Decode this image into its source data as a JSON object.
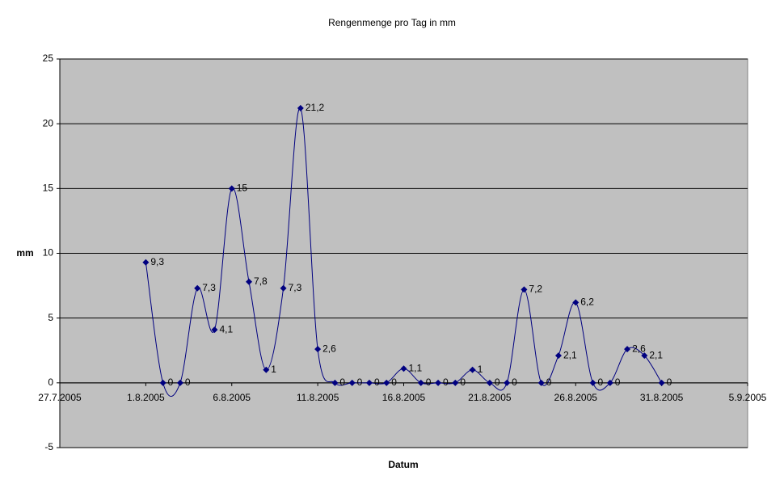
{
  "chart_data": {
    "type": "line",
    "title": "Rengenmenge pro Tag in mm",
    "x_label": "Datum",
    "y_label": "mm",
    "x": [
      "1.8.2005",
      "2.8.2005",
      "3.8.2005",
      "4.8.2005",
      "5.8.2005",
      "6.8.2005",
      "7.8.2005",
      "8.8.2005",
      "9.8.2005",
      "10.8.2005",
      "11.8.2005",
      "12.8.2005",
      "13.8.2005",
      "14.8.2005",
      "15.8.2005",
      "16.8.2005",
      "17.8.2005",
      "18.8.2005",
      "19.8.2005",
      "20.8.2005",
      "21.8.2005",
      "22.8.2005",
      "23.8.2005",
      "24.8.2005",
      "25.8.2005",
      "26.8.2005",
      "27.8.2005",
      "28.8.2005",
      "29.8.2005",
      "30.8.2005",
      "31.8.2005"
    ],
    "values": [
      9.3,
      0,
      0,
      7.3,
      4.1,
      15,
      7.8,
      1,
      7.3,
      21.2,
      2.6,
      0,
      0,
      0,
      0,
      1.1,
      0,
      0,
      0,
      1,
      0,
      0,
      7.2,
      0,
      2.1,
      6.2,
      0,
      0,
      2.6,
      2.1,
      0
    ],
    "value_labels": [
      "9,3",
      "0",
      "0",
      "7,3",
      "4,1",
      "15",
      "7,8",
      "1",
      "7,3",
      "21,2",
      "2,6",
      "0",
      "0",
      "0",
      "0",
      "1,1",
      "0",
      "0",
      "0",
      "1",
      "0",
      "0",
      "7,2",
      "0",
      "2,1",
      "6,2",
      "0",
      "0",
      "2,6",
      "2,1",
      "0"
    ],
    "color": "#000080",
    "plot_background": "#c0c0c0",
    "grid": true,
    "xlim": [
      "27.7.2005",
      "5.9.2005"
    ],
    "xticks": [
      "27.7.2005",
      "1.8.2005",
      "6.8.2005",
      "11.8.2005",
      "16.8.2005",
      "21.8.2005",
      "26.8.2005",
      "31.8.2005",
      "5.9.2005"
    ],
    "ylim": [
      -5,
      25
    ],
    "yticks": [
      -5,
      0,
      5,
      10,
      15,
      20,
      25
    ]
  }
}
